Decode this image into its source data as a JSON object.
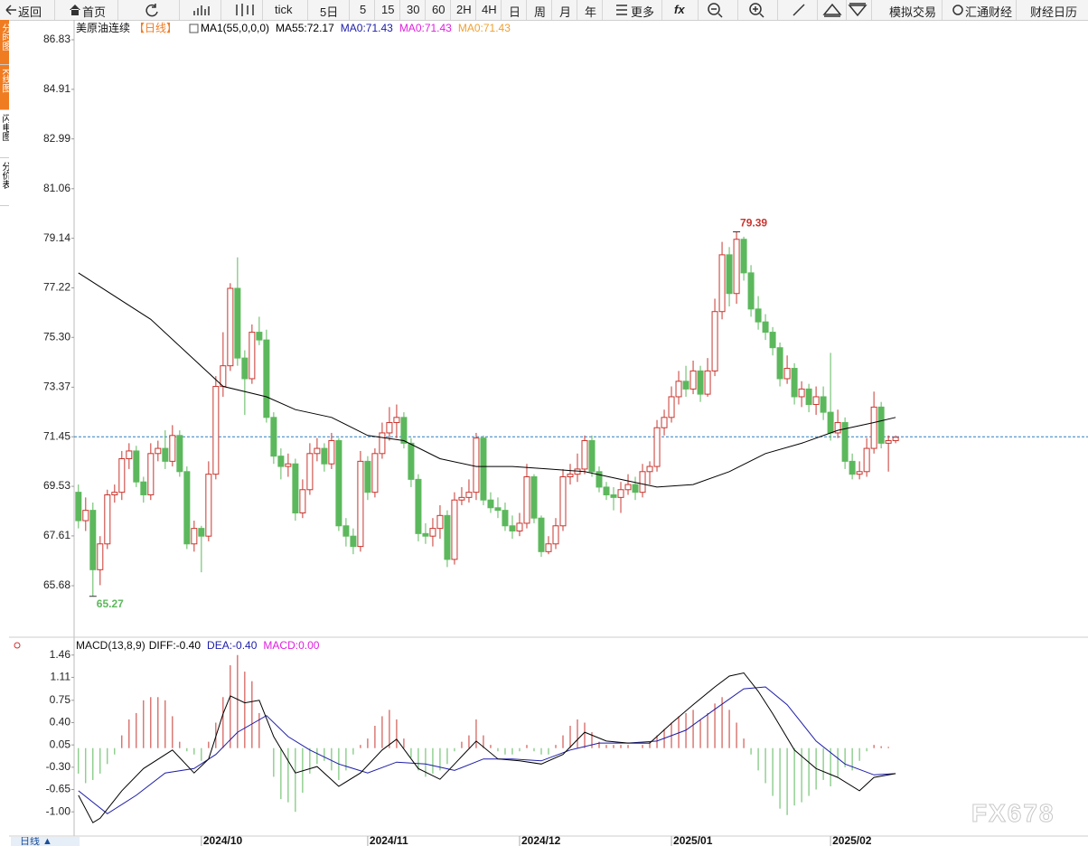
{
  "toolbar": {
    "items": [
      "返回",
      "首页",
      "tick",
      "5日",
      "5",
      "15",
      "30",
      "60",
      "2H",
      "4H",
      "日",
      "周",
      "月",
      "年",
      "更多",
      "fx",
      "模拟交易",
      "汇通财经",
      "财经日历"
    ]
  },
  "side_tabs": [
    "分时图",
    "K线图",
    "闪电图",
    "分价表"
  ],
  "period_button": "日线 ▲",
  "watermark": "FX678",
  "chart_data": [
    {
      "type": "candlestick",
      "title": "美原油连续",
      "period": "【日线】",
      "legend": [
        {
          "text": "MA1(55,0,0,0)",
          "color": "#000000"
        },
        {
          "text": "MA55:72.17",
          "color": "#000000"
        },
        {
          "text": "MA0:71.43",
          "color": "#1c1ca8"
        },
        {
          "text": "MA0:71.43",
          "color": "#e020e0"
        },
        {
          "text": "MA0:71.43",
          "color": "#f0a030"
        }
      ],
      "up_color": "#c8362f",
      "down_color": "#5cb85c",
      "price_line": 71.45,
      "price_line_color": "#2a7fc0",
      "high_index": 91,
      "low_index": 2,
      "xlim": [
        -0.6,
        139.6
      ],
      "ylim": [
        63.86,
        87.6
      ],
      "yticks": [
        86.83,
        84.91,
        82.99,
        81.06,
        79.14,
        77.22,
        {
          "value": 75.3,
          "label": "75.30"
        },
        73.37,
        71.45,
        69.53,
        67.61,
        65.68
      ],
      "candles": [
        [
          69.3,
          69.6,
          67.9,
          68.2
        ],
        [
          68.2,
          69.1,
          67.8,
          68.6
        ],
        [
          68.6,
          68.9,
          65.27,
          66.3
        ],
        [
          66.3,
          67.6,
          65.7,
          67.3
        ],
        [
          67.3,
          69.4,
          67.1,
          69.2
        ],
        [
          69.2,
          69.6,
          68.9,
          69.3
        ],
        [
          69.3,
          70.9,
          69.0,
          70.6
        ],
        [
          70.6,
          71.2,
          70.2,
          70.9
        ],
        [
          70.9,
          71.1,
          69.5,
          69.7
        ],
        [
          69.7,
          69.9,
          68.9,
          69.2
        ],
        [
          69.2,
          71.2,
          69.0,
          70.8
        ],
        [
          70.8,
          71.3,
          70.5,
          71.0
        ],
        [
          71.0,
          71.7,
          70.2,
          70.5
        ],
        [
          70.5,
          71.9,
          70.3,
          71.5
        ],
        [
          71.5,
          71.7,
          69.9,
          70.1
        ],
        [
          70.1,
          70.3,
          67.1,
          67.3
        ],
        [
          67.3,
          68.2,
          67.0,
          67.9
        ],
        [
          67.9,
          68.0,
          66.2,
          67.6
        ],
        [
          67.6,
          70.5,
          67.4,
          70.0
        ],
        [
          70.0,
          73.8,
          69.8,
          73.4
        ],
        [
          73.4,
          75.5,
          73.0,
          74.2
        ],
        [
          74.2,
          77.4,
          74.0,
          77.2
        ],
        [
          77.2,
          78.4,
          74.2,
          74.5
        ],
        [
          74.5,
          74.8,
          72.3,
          73.7
        ],
        [
          73.7,
          75.8,
          73.5,
          75.5
        ],
        [
          75.5,
          76.1,
          75.0,
          75.2
        ],
        [
          75.2,
          75.6,
          72.0,
          72.2
        ],
        [
          72.2,
          72.4,
          70.4,
          70.7
        ],
        [
          70.7,
          71.0,
          69.8,
          70.3
        ],
        [
          70.3,
          70.8,
          69.9,
          70.4
        ],
        [
          70.4,
          70.6,
          68.2,
          68.5
        ],
        [
          68.5,
          69.8,
          68.3,
          69.4
        ],
        [
          69.4,
          71.2,
          69.2,
          70.8
        ],
        [
          70.8,
          71.4,
          70.5,
          71.0
        ],
        [
          71.0,
          71.2,
          70.1,
          70.4
        ],
        [
          70.4,
          71.6,
          70.2,
          71.3
        ],
        [
          71.3,
          71.4,
          67.8,
          68.0
        ],
        [
          68.0,
          68.3,
          67.2,
          67.6
        ],
        [
          67.6,
          67.9,
          66.9,
          67.2
        ],
        [
          67.2,
          70.9,
          67.0,
          70.5
        ],
        [
          70.5,
          70.7,
          69.0,
          69.3
        ],
        [
          69.3,
          71.0,
          69.1,
          70.8
        ],
        [
          70.8,
          72.0,
          70.6,
          71.6
        ],
        [
          71.6,
          72.6,
          71.3,
          72.0
        ],
        [
          72.0,
          72.7,
          71.4,
          72.2
        ],
        [
          72.2,
          72.4,
          71.0,
          71.2
        ],
        [
          71.2,
          71.4,
          69.5,
          69.8
        ],
        [
          69.8,
          70.0,
          67.4,
          67.7
        ],
        [
          67.7,
          68.1,
          67.3,
          67.6
        ],
        [
          67.6,
          68.3,
          67.2,
          67.9
        ],
        [
          67.9,
          68.8,
          67.5,
          68.4
        ],
        [
          68.4,
          68.6,
          66.4,
          66.7
        ],
        [
          66.7,
          69.3,
          66.5,
          69.0
        ],
        [
          69.0,
          69.5,
          68.8,
          69.1
        ],
        [
          69.1,
          69.8,
          68.9,
          69.3
        ],
        [
          69.3,
          71.6,
          69.0,
          71.4
        ],
        [
          71.4,
          71.5,
          68.8,
          69.0
        ],
        [
          69.0,
          69.3,
          68.5,
          68.7
        ],
        [
          68.7,
          69.1,
          68.3,
          68.6
        ],
        [
          68.6,
          68.9,
          67.8,
          68.0
        ],
        [
          68.0,
          68.4,
          67.5,
          67.8
        ],
        [
          67.8,
          68.5,
          67.6,
          68.1
        ],
        [
          68.1,
          70.4,
          67.9,
          69.9
        ],
        [
          69.9,
          70.0,
          68.1,
          68.3
        ],
        [
          68.3,
          68.4,
          66.8,
          67.0
        ],
        [
          67.0,
          67.6,
          66.9,
          67.3
        ],
        [
          67.3,
          68.3,
          67.1,
          68.0
        ],
        [
          68.0,
          70.2,
          67.8,
          69.9
        ],
        [
          69.9,
          70.4,
          69.6,
          70.0
        ],
        [
          70.0,
          70.8,
          69.7,
          70.2
        ],
        [
          70.2,
          71.5,
          70.0,
          71.3
        ],
        [
          71.3,
          71.5,
          69.9,
          70.1
        ],
        [
          70.1,
          70.3,
          69.3,
          69.5
        ],
        [
          69.5,
          69.7,
          69.0,
          69.2
        ],
        [
          69.2,
          69.5,
          68.6,
          69.1
        ],
        [
          69.1,
          69.7,
          68.5,
          69.4
        ],
        [
          69.4,
          70.0,
          69.2,
          69.6
        ],
        [
          69.6,
          69.9,
          69.0,
          69.3
        ],
        [
          69.3,
          70.4,
          69.1,
          70.1
        ],
        [
          70.1,
          70.5,
          69.6,
          70.3
        ],
        [
          70.3,
          72.1,
          70.1,
          71.8
        ],
        [
          71.8,
          72.5,
          71.5,
          72.2
        ],
        [
          72.2,
          73.4,
          72.0,
          73.0
        ],
        [
          73.0,
          74.0,
          72.7,
          73.6
        ],
        [
          73.6,
          74.2,
          73.0,
          73.3
        ],
        [
          73.3,
          74.4,
          73.1,
          74.0
        ],
        [
          74.0,
          74.2,
          72.8,
          73.1
        ],
        [
          73.1,
          74.5,
          73.0,
          74.0
        ],
        [
          74.0,
          76.8,
          73.8,
          76.3
        ],
        [
          76.3,
          79.0,
          76.0,
          78.5
        ],
        [
          78.5,
          78.8,
          76.5,
          77.0
        ],
        [
          77.0,
          79.39,
          76.6,
          79.1
        ],
        [
          79.1,
          79.2,
          77.5,
          77.8
        ],
        [
          77.8,
          78.1,
          76.1,
          76.4
        ],
        [
          76.4,
          76.9,
          75.6,
          75.9
        ],
        [
          75.9,
          76.2,
          75.2,
          75.5
        ],
        [
          75.5,
          75.7,
          74.6,
          74.9
        ],
        [
          74.9,
          75.1,
          73.4,
          73.7
        ],
        [
          73.7,
          74.6,
          73.5,
          74.1
        ],
        [
          74.1,
          74.3,
          72.7,
          73.0
        ],
        [
          73.0,
          73.6,
          72.6,
          73.3
        ],
        [
          73.3,
          73.5,
          72.4,
          72.7
        ],
        [
          72.7,
          73.4,
          72.3,
          73.0
        ],
        [
          73.0,
          73.4,
          72.1,
          72.4
        ],
        [
          72.4,
          74.7,
          71.3,
          71.6
        ],
        [
          71.6,
          72.5,
          71.4,
          72.0
        ],
        [
          72.0,
          72.2,
          70.2,
          70.5
        ],
        [
          70.5,
          70.8,
          69.8,
          70.0
        ],
        [
          70.0,
          70.5,
          69.8,
          70.1
        ],
        [
          70.1,
          71.4,
          69.9,
          71.0
        ],
        [
          71.0,
          73.2,
          70.8,
          72.6
        ],
        [
          72.6,
          72.8,
          71.0,
          71.2
        ],
        [
          71.2,
          71.5,
          70.1,
          71.3
        ],
        [
          71.3,
          71.5,
          71.2,
          71.43
        ]
      ],
      "ma": {
        "color": "#000000",
        "x": [
          0,
          10,
          20,
          26,
          30,
          35,
          40,
          45,
          50,
          55,
          60,
          65,
          70,
          75,
          80,
          85,
          90,
          95,
          100,
          105,
          110,
          113
        ],
        "values": [
          77.8,
          76.0,
          73.4,
          73.0,
          72.5,
          72.2,
          71.5,
          71.3,
          70.6,
          70.3,
          70.3,
          70.2,
          70.1,
          69.8,
          69.5,
          69.6,
          70.1,
          70.8,
          71.2,
          71.7,
          72.0,
          72.2
        ]
      }
    },
    {
      "type": "macd",
      "title": "MACD(13,8,9)",
      "legend": [
        {
          "text": "DIFF:-0.40",
          "color": "#000000"
        },
        {
          "text": "DEA:-0.40",
          "color": "#1c1ca8"
        },
        {
          "text": "MACD:0.00",
          "color": "#e020e0"
        }
      ],
      "up_color": "#c8362f",
      "down_color": "#5cb85c",
      "xlim": [
        -0.6,
        139.6
      ],
      "ylim": [
        -1.38,
        1.74
      ],
      "yticks": [
        1.46,
        1.11,
        0.75,
        {
          "value": 0.4,
          "label": "0.40"
        },
        0.05,
        {
          "value": -0.3,
          "label": "-0.30"
        },
        -0.65,
        {
          "value": -1,
          "label": "-1.00"
        }
      ],
      "xticks": [
        {
          "value": 17,
          "label": "2024/10"
        },
        {
          "value": 40,
          "label": "2024/11"
        },
        {
          "value": 61,
          "label": "2024/12"
        },
        {
          "value": 82,
          "label": "2025/01"
        },
        {
          "value": 104,
          "label": "2025/02"
        }
      ],
      "diff": {
        "color": "#000000",
        "x": [
          0,
          2,
          3,
          6,
          9,
          13,
          16,
          18,
          20,
          21,
          23,
          25,
          27,
          30,
          33,
          36,
          39,
          42,
          44,
          47,
          50,
          52,
          55,
          58,
          61,
          64,
          67,
          70,
          73,
          76,
          79,
          82,
          85,
          88,
          90,
          92,
          94,
          96,
          99,
          102,
          105,
          108,
          110,
          113
        ],
        "values": [
          -0.74,
          -1.17,
          -1.1,
          -0.67,
          -0.32,
          -0.03,
          -0.39,
          -0.17,
          0.54,
          0.82,
          0.71,
          0.75,
          0.18,
          -0.39,
          -0.29,
          -0.6,
          -0.39,
          -0.03,
          0.14,
          -0.32,
          -0.49,
          -0.25,
          0.11,
          -0.17,
          -0.2,
          -0.25,
          -0.1,
          0.25,
          0.11,
          0.08,
          0.08,
          0.39,
          0.68,
          0.96,
          1.13,
          1.18,
          0.89,
          0.54,
          -0.03,
          -0.32,
          -0.46,
          -0.67,
          -0.46,
          -0.4
        ]
      },
      "dea": {
        "color": "#1c1ca8",
        "x": [
          0,
          4,
          8,
          12,
          16,
          19,
          22,
          26,
          29,
          32,
          36,
          40,
          44,
          48,
          52,
          56,
          60,
          64,
          68,
          72,
          76,
          80,
          84,
          88,
          92,
          95,
          98,
          102,
          106,
          110,
          113
        ],
        "values": [
          -0.67,
          -1.03,
          -0.74,
          -0.39,
          -0.32,
          -0.1,
          0.25,
          0.51,
          0.18,
          -0.03,
          -0.25,
          -0.39,
          -0.22,
          -0.25,
          -0.35,
          -0.17,
          -0.17,
          -0.2,
          -0.03,
          0.08,
          0.08,
          0.11,
          0.28,
          0.61,
          0.93,
          0.96,
          0.68,
          0.11,
          -0.25,
          -0.42,
          -0.4
        ]
      },
      "histogram": [
        -0.4,
        -0.55,
        -0.5,
        -0.4,
        -0.25,
        -0.1,
        0.2,
        0.45,
        0.55,
        0.75,
        0.8,
        0.8,
        0.75,
        0.5,
        0.1,
        -0.05,
        -0.1,
        -0.2,
        0.1,
        0.4,
        0.8,
        1.3,
        1.46,
        1.2,
        1.05,
        0.55,
        0.0,
        -0.45,
        -0.8,
        -0.85,
        -1.0,
        -0.7,
        -0.4,
        -0.25,
        -0.2,
        -0.35,
        -0.5,
        -0.35,
        -0.1,
        0.05,
        0.15,
        0.35,
        0.5,
        0.6,
        0.45,
        0.15,
        -0.15,
        -0.35,
        -0.45,
        -0.4,
        -0.35,
        -0.25,
        -0.05,
        0.1,
        0.2,
        0.45,
        0.2,
        0.05,
        -0.05,
        -0.1,
        -0.1,
        -0.05,
        0.05,
        -0.05,
        -0.1,
        -0.1,
        0.05,
        0.2,
        0.35,
        0.45,
        0.4,
        0.25,
        0.1,
        0.05,
        0.05,
        0.05,
        0.05,
        0.0,
        0.05,
        0.1,
        0.2,
        0.3,
        0.4,
        0.5,
        0.55,
        0.6,
        0.45,
        0.55,
        0.7,
        0.8,
        0.6,
        0.4,
        0.15,
        -0.1,
        -0.35,
        -0.55,
        -0.75,
        -0.95,
        -1.05,
        -0.9,
        -0.85,
        -0.75,
        -0.65,
        -0.5,
        -0.6,
        -0.45,
        -0.3,
        -0.35,
        -0.2,
        -0.05,
        0.05,
        0.03,
        0.02,
        0.0
      ]
    }
  ]
}
